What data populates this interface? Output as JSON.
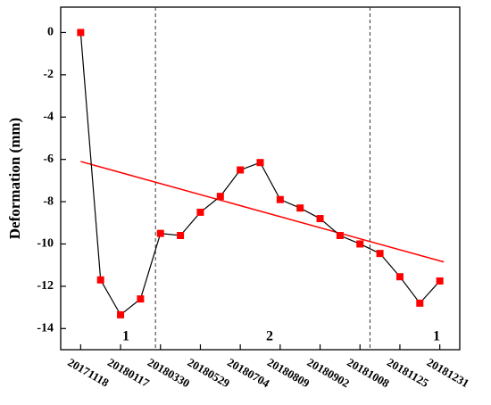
{
  "chart_data": {
    "type": "line",
    "y_label": "Deformation (mm)",
    "categories": [
      "20171118",
      null,
      "20180117",
      null,
      "20180330",
      null,
      "20180529",
      null,
      "20180704",
      null,
      "20180809",
      null,
      "20180902",
      null,
      "20181008",
      null,
      "20181125",
      null,
      "20181231"
    ],
    "series": [
      {
        "color": "#ff0000",
        "line_color": "#000000",
        "values": [
          0,
          -11.7,
          -13.35,
          -12.6,
          -9.5,
          -9.6,
          -8.5,
          -7.75,
          -6.5,
          -6.15,
          -7.9,
          -8.3,
          -8.8,
          -9.6,
          -10.0,
          -10.45,
          -11.55,
          -12.8,
          -11.75
        ]
      }
    ],
    "trend": {
      "x": [
        0,
        18.2
      ],
      "values": [
        -6.1,
        -10.85
      ],
      "color": "#ff0000"
    },
    "dividers": [
      3.75,
      14.5
    ],
    "regions": [
      "1",
      "2",
      "1"
    ],
    "xlim": [
      -1,
      19
    ],
    "ylim": [
      -15,
      1.2
    ],
    "yticks": [
      0,
      -2,
      -4,
      -6,
      -8,
      -10,
      -12,
      -14
    ]
  }
}
